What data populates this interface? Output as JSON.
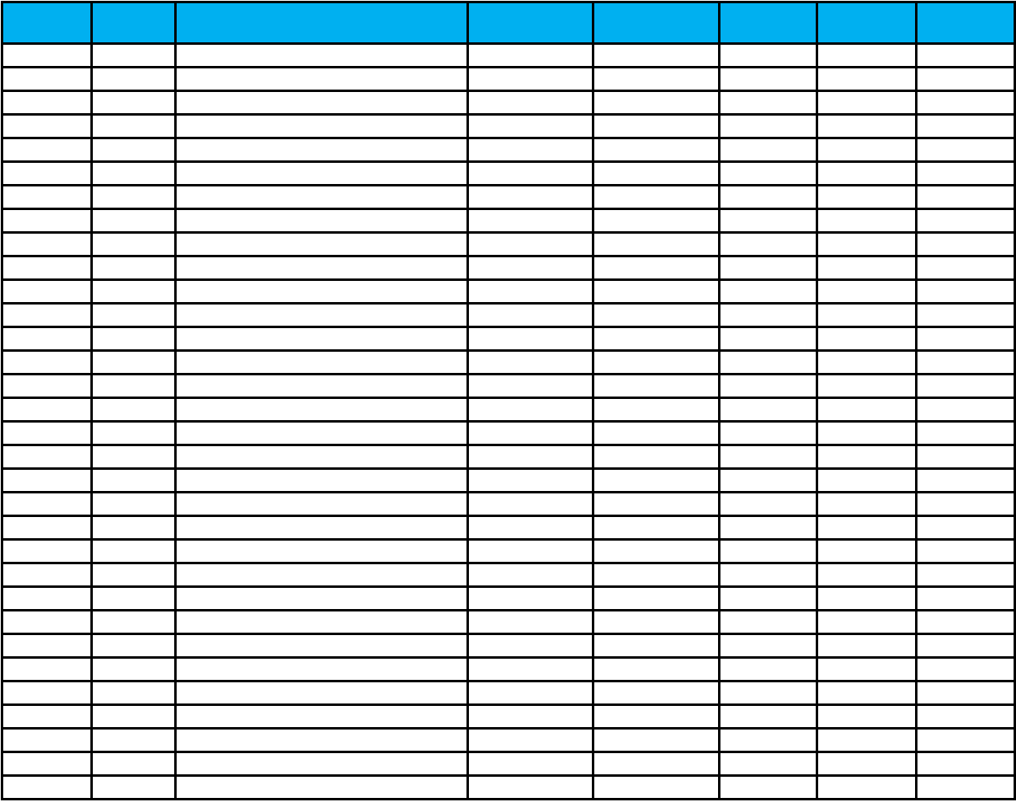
{
  "table": {
    "header_color": "#00b0f0",
    "border_color": "#000000",
    "columns": [
      "",
      "",
      "",
      "",
      "",
      "",
      "",
      ""
    ],
    "rows": []
  }
}
